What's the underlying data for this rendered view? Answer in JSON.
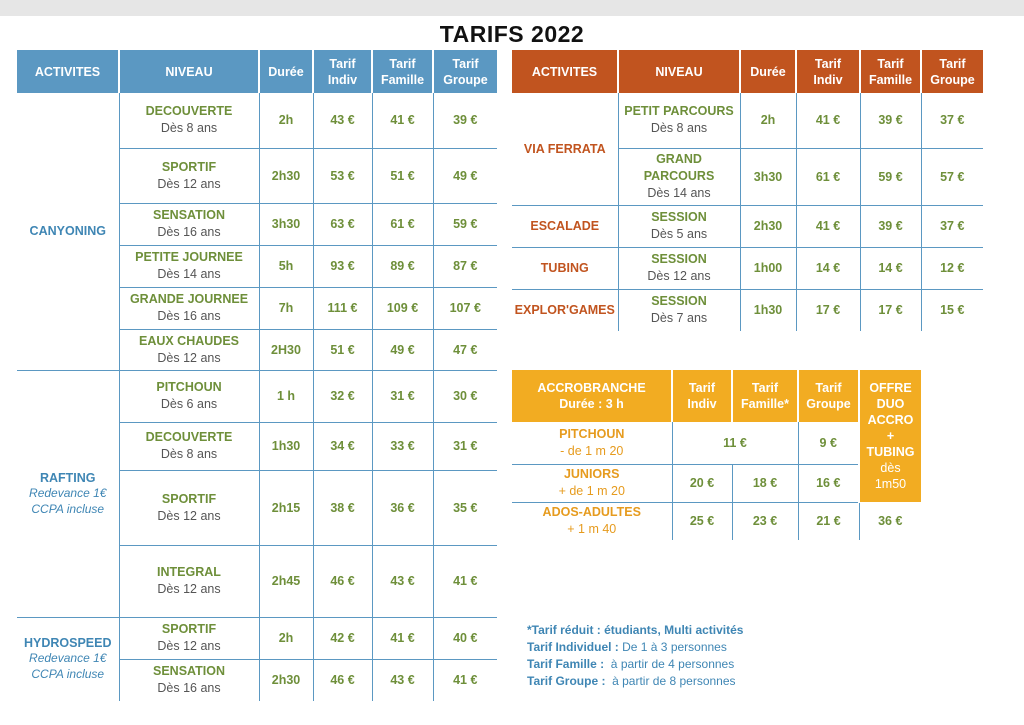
{
  "title": "TARIFS 2022",
  "left_headers": [
    "ACTIVITES",
    "NIVEAU",
    "Durée",
    "Tarif Indiv",
    "Tarif Famille",
    "Tarif Groupe"
  ],
  "canyoning": {
    "activity": "CANYONING",
    "rows": [
      {
        "level": "DECOUVERTE",
        "age": "Dès 8 ans",
        "duration": "2h",
        "indiv": "43 €",
        "famille": "41 €",
        "groupe": "39 €"
      },
      {
        "level": "SPORTIF",
        "age": "Dès 12 ans",
        "duration": "2h30",
        "indiv": "53 €",
        "famille": "51 €",
        "groupe": "49 €"
      },
      {
        "level": "SENSATION",
        "age": "Dès 16 ans",
        "duration": "3h30",
        "indiv": "63 €",
        "famille": "61 €",
        "groupe": "59 €"
      },
      {
        "level": "PETITE JOURNEE",
        "age": "Dès 14 ans",
        "duration": "5h",
        "indiv": "93 €",
        "famille": "89 €",
        "groupe": "87 €"
      },
      {
        "level": "GRANDE JOURNEE",
        "age": "Dès 16 ans",
        "duration": "7h",
        "indiv": "111 €",
        "famille": "109 €",
        "groupe": "107 €"
      },
      {
        "level": "EAUX CHAUDES",
        "age": "Dès 12 ans",
        "duration": "2H30",
        "indiv": "51 €",
        "famille": "49 €",
        "groupe": "47 €"
      }
    ]
  },
  "rafting": {
    "activity": "RAFTING",
    "note1": "Redevance 1€",
    "note2": "CCPA incluse",
    "rows": [
      {
        "level": "PITCHOUN",
        "age": "Dès 6 ans",
        "duration": "1 h",
        "indiv": "32 €",
        "famille": "31 €",
        "groupe": "30 €"
      },
      {
        "level": "DECOUVERTE",
        "age": "Dès 8 ans",
        "duration": "1h30",
        "indiv": "34 €",
        "famille": "33 €",
        "groupe": "31 €"
      },
      {
        "level": "SPORTIF",
        "age": "Dès 12 ans",
        "duration": "2h15",
        "indiv": "38 €",
        "famille": "36 €",
        "groupe": "35 €"
      },
      {
        "level": "INTEGRAL",
        "age": "Dès 12 ans",
        "duration": "2h45",
        "indiv": "46 €",
        "famille": "43 €",
        "groupe": "41 €"
      }
    ]
  },
  "hydrospeed": {
    "activity": "HYDROSPEED",
    "note1": "Redevance 1€",
    "note2": "CCPA incluse",
    "rows": [
      {
        "level": "SPORTIF",
        "age": "Dès 12 ans",
        "duration": "2h",
        "indiv": "42 €",
        "famille": "41 €",
        "groupe": "40 €"
      },
      {
        "level": "SENSATION",
        "age": "Dès 16 ans",
        "duration": "2h30",
        "indiv": "46 €",
        "famille": "43 €",
        "groupe": "41 €"
      }
    ]
  },
  "right_headers": [
    "ACTIVITES",
    "NIVEAU",
    "Durée",
    "Tarif Indiv",
    "Tarif Famille",
    "Tarif Groupe"
  ],
  "via_ferrata": {
    "activity": "VIA FERRATA",
    "rows": [
      {
        "level": "PETIT PARCOURS",
        "age": "Dès 8 ans",
        "duration": "2h",
        "indiv": "41 €",
        "famille": "39 €",
        "groupe": "37 €"
      },
      {
        "level": "GRAND PARCOURS",
        "age": "Dès 14 ans",
        "duration": "3h30",
        "indiv": "61 €",
        "famille": "59 €",
        "groupe": "57 €"
      }
    ]
  },
  "escalade": {
    "activity": "ESCALADE",
    "level": "SESSION",
    "age": "Dès 5 ans",
    "duration": "2h30",
    "indiv": "41 €",
    "famille": "39 €",
    "groupe": "37 €"
  },
  "tubing": {
    "activity": "TUBING",
    "level": "SESSION",
    "age": "Dès 12 ans",
    "duration": "1h00",
    "indiv": "14 €",
    "famille": "14 €",
    "groupe": "12 €"
  },
  "explor": {
    "activity": "EXPLOR'GAMES",
    "level": "SESSION",
    "age": "Dès 7 ans",
    "duration": "1h30",
    "indiv": "17 €",
    "famille": "17 €",
    "groupe": "15 €"
  },
  "accro": {
    "header_title": "ACCROBRANCHE",
    "header_sub": "Durée : 3 h",
    "headers": [
      "Tarif Indiv",
      "Tarif Famille*",
      "Tarif Groupe"
    ],
    "offre": {
      "l1": "OFFRE",
      "l2": "DUO",
      "l3": "ACCRO",
      "l4": "+",
      "l5": "TUBING",
      "l6": "dès",
      "l7": "1m50"
    },
    "pitchoun": {
      "name": "PITCHOUN",
      "sub": "- de 1 m 20",
      "indiv_famille": "11 €",
      "groupe": "9 €"
    },
    "juniors": {
      "name": "JUNIORS",
      "sub": "+ de 1 m 20",
      "indiv": "20 €",
      "famille": "18 €",
      "groupe": "16 €"
    },
    "ados": {
      "name": "ADOS-ADULTES",
      "sub": "+ 1 m 40",
      "indiv": "25 €",
      "famille": "23 €",
      "groupe": "21 €",
      "offre_price": "36 €"
    }
  },
  "notes": {
    "line1": "*Tarif réduit : étudiants, Multi activités",
    "l2_label": "Tarif Individuel :",
    "l2_text": " De 1 à 3 personnes",
    "l3_label": "Tarif Famille :",
    "l3_text": "  à partir de 4 personnes",
    "l4_label": "Tarif Groupe :",
    "l4_text": "  à partir de 8 personnes"
  },
  "colors": {
    "blue": "#5b98c2",
    "orange": "#c1541f",
    "yellow": "#f2ac22",
    "green": "#6e8f3a"
  }
}
